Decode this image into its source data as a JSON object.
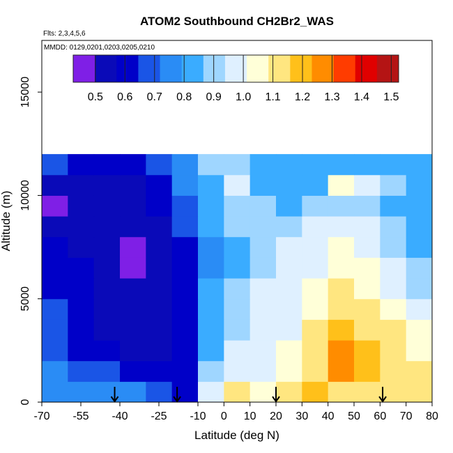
{
  "chart_data": {
    "type": "heatmap",
    "title": "ATOM2 Southbound CH2Br2_WAS",
    "flights_note": "Flts: 2,3,4,5,6",
    "dates_note": "MMDD: 0129,0201,0203,0205,0210",
    "xlabel": "Latitude (deg N)",
    "ylabel": "Altitude (m)",
    "xlim": [
      -70,
      80
    ],
    "ylim": [
      0,
      17500
    ],
    "x_ticks": [
      -70,
      -55,
      -40,
      -25,
      -10,
      0,
      10,
      20,
      30,
      40,
      50,
      60,
      70,
      80
    ],
    "y_ticks": [
      0,
      5000,
      10000,
      15000
    ],
    "colorbar": {
      "ticks": [
        0.5,
        0.6,
        0.7,
        0.8,
        0.9,
        1.0,
        1.1,
        1.2,
        1.3,
        1.4,
        1.5
      ],
      "range": [
        0.425,
        1.525
      ],
      "colors": [
        "#7f1fe6",
        "#0a0ab8",
        "#0000c8",
        "#1a55e6",
        "#2a8cf5",
        "#3aacff",
        "#9fd6ff",
        "#dff0ff",
        "#ffffd8",
        "#ffe680",
        "#ffc01a",
        "#ff8c00",
        "#ff3c00",
        "#e00000",
        "#b41414"
      ]
    },
    "arrows_latitude": [
      -42,
      -18,
      20,
      61
    ],
    "latitude_bins": [
      -70,
      -60,
      -50,
      -40,
      -30,
      -20,
      -10,
      0,
      10,
      20,
      30,
      40,
      50,
      60,
      70
    ],
    "altitude_bins_m": [
      0,
      1000,
      2000,
      3000,
      4000,
      5000,
      6000,
      7000,
      8000,
      9000,
      10000,
      11000,
      12000
    ],
    "values": [
      [
        0.76,
        0.72,
        0.74,
        0.72,
        0.65,
        0.62,
        0.95,
        1.12,
        1.08,
        1.12,
        1.18,
        1.15,
        1.15,
        1.14,
        1.1
      ],
      [
        0.72,
        0.68,
        0.66,
        0.62,
        0.58,
        0.6,
        0.88,
        1.0,
        1.0,
        1.05,
        1.15,
        1.25,
        1.2,
        1.15,
        1.1
      ],
      [
        0.7,
        0.64,
        0.58,
        0.54,
        0.52,
        0.6,
        0.82,
        0.95,
        1.0,
        1.05,
        1.15,
        1.3,
        1.2,
        1.12,
        1.05
      ],
      [
        0.68,
        0.62,
        0.56,
        0.52,
        0.52,
        0.6,
        0.82,
        0.92,
        0.98,
        1.0,
        1.12,
        1.18,
        1.15,
        1.1,
        1.02
      ],
      [
        0.66,
        0.6,
        0.54,
        0.5,
        0.52,
        0.62,
        0.8,
        0.9,
        0.95,
        0.98,
        1.05,
        1.12,
        1.1,
        1.05,
        0.95
      ],
      [
        0.64,
        0.6,
        0.52,
        0.5,
        0.52,
        0.62,
        0.8,
        0.88,
        0.95,
        0.95,
        1.02,
        1.1,
        1.08,
        1.0,
        0.92
      ],
      [
        0.62,
        0.58,
        0.52,
        0.48,
        0.54,
        0.62,
        0.78,
        0.86,
        0.92,
        0.95,
        1.0,
        1.05,
        1.02,
        0.95,
        0.88
      ],
      [
        0.6,
        0.56,
        0.5,
        0.48,
        0.54,
        0.64,
        0.78,
        0.86,
        0.9,
        0.95,
        0.98,
        1.02,
        1.0,
        0.92,
        0.85
      ],
      [
        0.55,
        0.54,
        0.5,
        0.5,
        0.56,
        0.66,
        0.8,
        0.88,
        0.9,
        0.92,
        0.95,
        0.98,
        0.95,
        0.88,
        0.82
      ],
      [
        0.48,
        0.5,
        0.52,
        0.52,
        0.58,
        0.68,
        0.82,
        0.92,
        0.88,
        0.85,
        0.9,
        0.92,
        0.9,
        0.85,
        0.8
      ],
      [
        0.5,
        0.55,
        0.55,
        0.55,
        0.6,
        0.72,
        0.85,
        0.95,
        0.85,
        0.8,
        0.85,
        1.05,
        0.95,
        0.88,
        0.85
      ],
      [
        0.7,
        0.62,
        0.6,
        0.6,
        0.65,
        0.75,
        0.9,
        0.9,
        0.85,
        0.8,
        0.82,
        0.85,
        0.85,
        0.85,
        0.85
      ]
    ]
  }
}
